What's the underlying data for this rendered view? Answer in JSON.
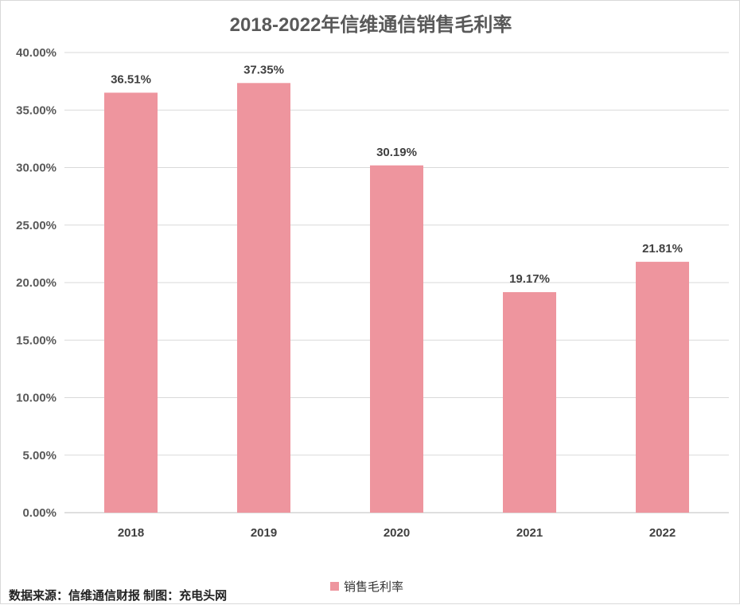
{
  "chart_data": {
    "type": "bar",
    "title": "2018-2022年信维通信销售毛利率",
    "categories": [
      "2018",
      "2019",
      "2020",
      "2021",
      "2022"
    ],
    "series": [
      {
        "name": "销售毛利率",
        "values": [
          36.51,
          37.35,
          30.19,
          19.17,
          21.81
        ]
      }
    ],
    "data_labels": [
      "36.51%",
      "37.35%",
      "30.19%",
      "19.17%",
      "21.81%"
    ],
    "y_ticks": [
      "0.00%",
      "5.00%",
      "10.00%",
      "15.00%",
      "20.00%",
      "25.00%",
      "30.00%",
      "35.00%",
      "40.00%"
    ],
    "ylim": [
      0,
      40
    ],
    "grid": true,
    "legend_position": "bottom",
    "bar_color": "#ee959e",
    "source_text": "数据来源：信维通信财报 制图：充电头网"
  }
}
